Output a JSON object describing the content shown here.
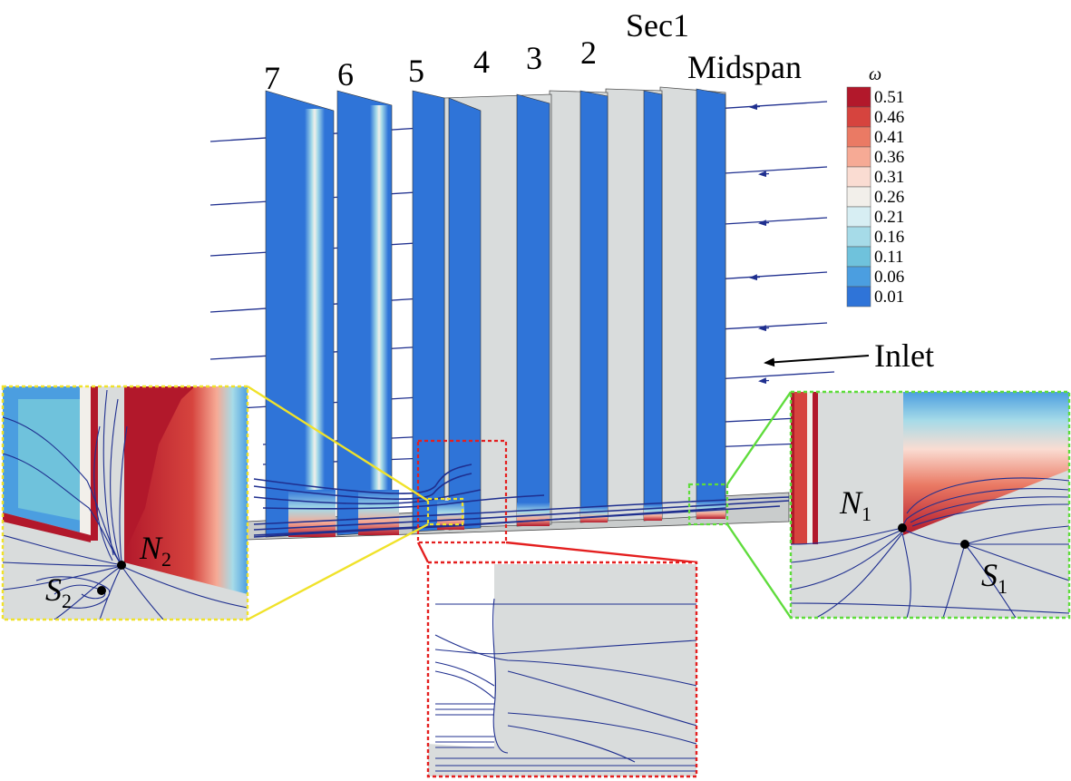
{
  "labels": {
    "sec1": "Sec1",
    "midspan": "Midspan",
    "inlet": "Inlet"
  },
  "section_numbers": [
    "7",
    "6",
    "5",
    "4",
    "3",
    "2"
  ],
  "points": {
    "n1": {
      "base": "N",
      "sub": "1"
    },
    "s1": {
      "base": "S",
      "sub": "1"
    },
    "n2": {
      "base": "N",
      "sub": "2"
    },
    "s2": {
      "base": "S",
      "sub": "2"
    }
  },
  "legend": {
    "title": "ω",
    "levels": [
      "0.51",
      "0.46",
      "0.41",
      "0.36",
      "0.31",
      "0.26",
      "0.21",
      "0.16",
      "0.11",
      "0.06",
      "0.01"
    ],
    "colors": [
      "#b2182b",
      "#d6443e",
      "#ea7a64",
      "#f6aa95",
      "#fadcd2",
      "#f2efea",
      "#d7eef3",
      "#a6dbe8",
      "#6fc2dc",
      "#4b9ee0",
      "#2f74d8"
    ]
  },
  "colors": {
    "blade_blue": "#2f74d8",
    "surface_gray": "#d9dcdc",
    "streamline": "#1f2f8f",
    "yellow_box": "#f0e22a",
    "red_box": "#e41f1f",
    "green_box": "#5fdc3c",
    "hot_red": "#b2182b"
  }
}
